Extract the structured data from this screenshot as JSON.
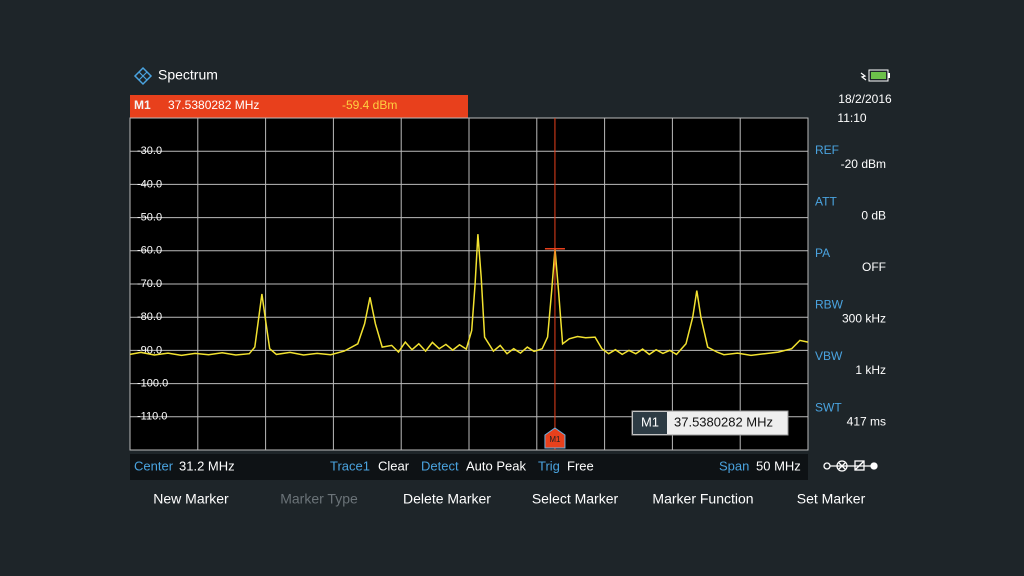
{
  "header": {
    "title": "Spectrum",
    "date": "18/2/2016",
    "time": "11:10"
  },
  "chart_data": {
    "type": "line",
    "x": [
      6.2,
      7,
      8,
      9,
      10,
      11,
      12,
      13,
      14,
      15,
      15.4,
      15.7,
      15.93,
      16.2,
      16.5,
      17,
      18,
      19,
      20,
      21,
      22,
      23,
      23.5,
      23.9,
      24.3,
      24.8,
      25.5,
      26,
      26.5,
      27,
      27.5,
      28,
      28.5,
      29,
      29.5,
      30,
      30.5,
      31,
      31.4,
      31.65,
      31.86,
      32.1,
      32.35,
      33,
      33.5,
      34,
      34.5,
      35,
      35.5,
      36,
      36.6,
      37,
      37.3,
      37.54,
      37.8,
      38.1,
      38.6,
      39.2,
      39.8,
      40.5,
      41,
      41.5,
      42,
      42.5,
      43,
      43.5,
      44,
      44.5,
      45,
      45.5,
      46,
      46.5,
      47.2,
      47.7,
      48,
      48.3,
      48.8,
      49.5,
      50,
      51,
      52,
      53,
      54,
      55,
      55.6,
      56.2
    ],
    "series": [
      {
        "name": "Trace1",
        "color": "#f2e230",
        "values": [
          -91.2,
          -90.6,
          -91.4,
          -90.8,
          -91.5,
          -90.9,
          -91.3,
          -90.7,
          -91.4,
          -91,
          -89,
          -80,
          -73,
          -81,
          -89.5,
          -91.2,
          -90.6,
          -91.4,
          -90.9,
          -91.3,
          -90.2,
          -88,
          -82,
          -74,
          -82,
          -89,
          -88.5,
          -90.5,
          -87.5,
          -89.8,
          -88,
          -90.2,
          -87.6,
          -89.5,
          -88.2,
          -89.9,
          -88.3,
          -89.6,
          -84,
          -70,
          -55,
          -68,
          -86,
          -90.2,
          -88.5,
          -91,
          -89.5,
          -90.8,
          -89,
          -90.3,
          -89.5,
          -86,
          -72,
          -59.4,
          -72,
          -88,
          -86.5,
          -85.8,
          -86.2,
          -86,
          -89.5,
          -91,
          -89.8,
          -91.2,
          -90,
          -91,
          -89.6,
          -91.2,
          -89.8,
          -90.9,
          -90,
          -91.2,
          -88,
          -80,
          -72,
          -80,
          -89,
          -90.5,
          -91.3,
          -90.8,
          -91.5,
          -91,
          -90.5,
          -89.5,
          -87,
          -87.5
        ]
      }
    ],
    "xlim": [
      6.2,
      56.2
    ],
    "ylim": [
      -120,
      -20
    ],
    "yticks": [
      {
        "value": -30,
        "label": "-30.0"
      },
      {
        "value": -40,
        "label": "-40.0"
      },
      {
        "value": -50,
        "label": "-50.0"
      },
      {
        "value": -60,
        "label": "-60.0"
      },
      {
        "value": -70,
        "label": "-70.0"
      },
      {
        "value": -80,
        "label": "-80.0"
      },
      {
        "value": -90,
        "label": "-90.0"
      },
      {
        "value": -100,
        "label": "-100.0"
      },
      {
        "value": -110,
        "label": "-110.0"
      }
    ],
    "grid": true,
    "marker": {
      "label": "M1",
      "x": 37.5380282,
      "x_label": "37.5380282 MHz",
      "y": -59.4,
      "y_label": "-59.4 dBm",
      "color": "#e8401c"
    }
  },
  "settings": [
    {
      "label": "REF",
      "value": "-20 dBm"
    },
    {
      "label": "ATT",
      "value": "0 dB"
    },
    {
      "label": "PA",
      "value": "OFF"
    },
    {
      "label": "RBW",
      "value": "300 kHz"
    },
    {
      "label": "VBW",
      "value": "1 kHz"
    },
    {
      "label": "SWT",
      "value": "417 ms"
    }
  ],
  "status": [
    {
      "label": "Center",
      "value": "31.2 MHz"
    },
    {
      "label": "Trace1",
      "value": "Clear"
    },
    {
      "label": "Detect",
      "value": "Auto Peak"
    },
    {
      "label": "Trig",
      "value": "Free"
    },
    {
      "label": "Span",
      "value": "50 MHz"
    }
  ],
  "softkeys": [
    {
      "label": "New Marker",
      "enabled": true
    },
    {
      "label": "Marker Type",
      "enabled": false
    },
    {
      "label": "Delete Marker",
      "enabled": true
    },
    {
      "label": "Select Marker",
      "enabled": true
    },
    {
      "label": "Marker Function",
      "enabled": true
    },
    {
      "label": "Set Marker",
      "enabled": true
    }
  ]
}
